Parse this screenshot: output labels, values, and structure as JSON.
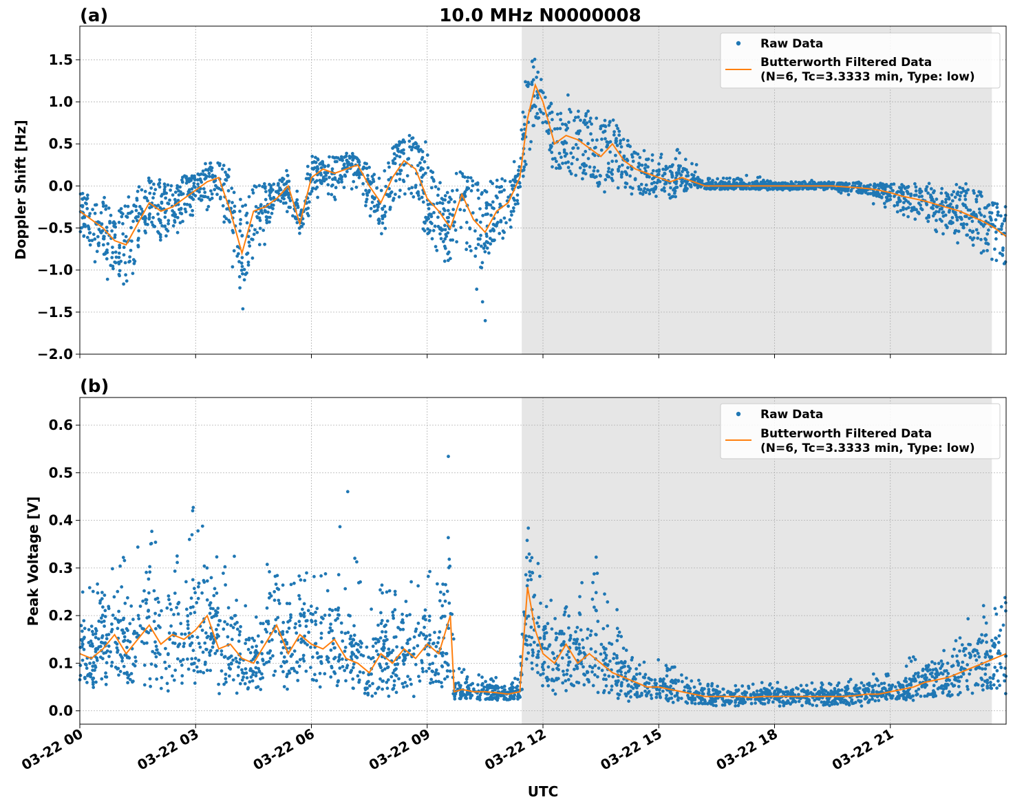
{
  "figure": {
    "title": "10.0 MHz N0000008",
    "xlabel": "UTC",
    "x_tick_labels": [
      "03-22 00",
      "03-22 03",
      "03-22 06",
      "03-22 09",
      "03-22 12",
      "03-22 15",
      "03-22 18",
      "03-22 21"
    ],
    "colors": {
      "raw": "#1f77b4",
      "filtered": "#ff7f0e",
      "shade": "#e6e6e6",
      "grid": "#b0b0b0"
    }
  },
  "chart_data": [
    {
      "type": "scatter",
      "panel_label": "(a)",
      "title": "10.0 MHz N0000008",
      "ylabel": "Doppler Shift [Hz]",
      "xlabel": "",
      "x_unit": "hours since 03-22 00 UTC",
      "xlim": [
        0,
        24
      ],
      "ylim": [
        -2.0,
        1.9
      ],
      "y_ticks": [
        -2.0,
        -1.5,
        -1.0,
        -0.5,
        0.0,
        0.5,
        1.0,
        1.5
      ],
      "y_tick_labels": [
        "−2.0",
        "−1.5",
        "−1.0",
        "−0.5",
        "0.0",
        "0.5",
        "1.0",
        "1.5"
      ],
      "shaded_span": [
        11.45,
        23.63
      ],
      "grid": true,
      "legend": {
        "position": "top-right",
        "entries": [
          "Raw Data",
          "Butterworth Filtered Data\n(N=6, Tc=3.3333 min, Type: low)"
        ]
      },
      "series": [
        {
          "name": "Butterworth Filtered Data (N=6, Tc=3.3333 min, Type: low)",
          "x": [
            0.0,
            0.3,
            0.6,
            0.9,
            1.2,
            1.5,
            1.8,
            2.1,
            2.4,
            2.7,
            3.0,
            3.3,
            3.6,
            3.9,
            4.2,
            4.5,
            4.8,
            5.1,
            5.4,
            5.7,
            6.0,
            6.3,
            6.6,
            6.9,
            7.2,
            7.5,
            7.8,
            8.1,
            8.4,
            8.7,
            9.0,
            9.3,
            9.6,
            9.9,
            10.2,
            10.5,
            10.8,
            11.1,
            11.4,
            11.6,
            11.8,
            12.0,
            12.3,
            12.6,
            12.9,
            13.2,
            13.5,
            13.8,
            14.1,
            14.4,
            14.7,
            15.0,
            15.3,
            15.6,
            15.9,
            16.2,
            16.5,
            16.8,
            17.1,
            17.4,
            17.7,
            18.0,
            18.3,
            18.6,
            18.9,
            19.2,
            19.5,
            19.8,
            20.1,
            20.4,
            20.7,
            21.0,
            21.3,
            21.6,
            21.9,
            22.2,
            22.5,
            22.8,
            23.1,
            23.4,
            23.7,
            24.0
          ],
          "y": [
            -0.3,
            -0.4,
            -0.5,
            -0.65,
            -0.7,
            -0.45,
            -0.2,
            -0.3,
            -0.25,
            -0.15,
            -0.05,
            0.05,
            0.1,
            -0.3,
            -0.8,
            -0.3,
            -0.25,
            -0.15,
            0.0,
            -0.45,
            0.1,
            0.2,
            0.15,
            0.2,
            0.25,
            0.0,
            -0.2,
            0.1,
            0.3,
            0.2,
            -0.15,
            -0.3,
            -0.5,
            -0.1,
            -0.4,
            -0.55,
            -0.3,
            -0.2,
            0.1,
            0.8,
            1.2,
            1.0,
            0.5,
            0.6,
            0.55,
            0.45,
            0.35,
            0.5,
            0.3,
            0.2,
            0.15,
            0.1,
            0.05,
            0.1,
            0.05,
            0.0,
            0.0,
            0.0,
            0.0,
            0.0,
            0.0,
            0.0,
            0.0,
            0.0,
            0.0,
            0.0,
            0.0,
            -0.01,
            -0.02,
            -0.03,
            -0.05,
            -0.08,
            -0.12,
            -0.15,
            -0.18,
            -0.22,
            -0.26,
            -0.3,
            -0.36,
            -0.42,
            -0.5,
            -0.6
          ]
        },
        {
          "name": "Raw Data",
          "x": [
            0.0,
            0.3,
            0.6,
            0.9,
            1.2,
            1.5,
            1.8,
            2.1,
            2.4,
            2.7,
            3.0,
            3.3,
            3.6,
            3.9,
            4.2,
            4.5,
            4.8,
            5.1,
            5.4,
            5.7,
            6.0,
            6.3,
            6.6,
            6.9,
            7.2,
            7.5,
            7.8,
            8.1,
            8.4,
            8.7,
            9.0,
            9.3,
            9.6,
            9.9,
            10.2,
            10.5,
            10.8,
            11.1,
            11.4,
            11.6,
            11.8,
            12.0,
            12.3,
            12.6,
            12.9,
            13.2,
            13.5,
            13.8,
            14.1,
            14.4,
            14.7,
            15.0,
            15.3,
            15.6,
            15.9,
            16.2,
            16.5,
            16.8,
            17.1,
            17.4,
            17.7,
            18.0,
            18.3,
            18.6,
            18.9,
            19.2,
            19.5,
            19.8,
            20.1,
            20.4,
            20.7,
            21.0,
            21.3,
            21.6,
            21.9,
            22.2,
            22.5,
            22.8,
            23.1,
            23.4,
            23.7,
            24.0
          ],
          "y_min": [
            -0.6,
            -0.8,
            -1.2,
            -1.1,
            -1.3,
            -0.9,
            -0.6,
            -0.7,
            -0.6,
            -0.5,
            -0.4,
            -0.3,
            -0.5,
            -1.0,
            -1.8,
            -0.8,
            -0.7,
            -0.5,
            -0.3,
            -0.6,
            -0.3,
            -0.1,
            -0.2,
            -0.1,
            -0.1,
            -0.4,
            -0.7,
            -0.4,
            -0.1,
            -0.3,
            -0.7,
            -0.8,
            -1.0,
            -0.6,
            -1.4,
            -1.7,
            -0.7,
            -0.6,
            -0.2,
            0.2,
            0.6,
            0.5,
            0.1,
            0.1,
            0.1,
            0.0,
            -0.1,
            -0.1,
            -0.1,
            -0.1,
            -0.1,
            -0.15,
            -0.2,
            -0.1,
            -0.05,
            -0.05,
            -0.05,
            -0.05,
            -0.05,
            -0.05,
            -0.05,
            -0.05,
            -0.05,
            -0.05,
            -0.05,
            -0.05,
            -0.05,
            -0.1,
            -0.15,
            -0.2,
            -0.25,
            -0.3,
            -0.35,
            -0.4,
            -0.5,
            -0.55,
            -0.6,
            -0.7,
            -0.8,
            -0.9,
            -1.0,
            -1.05
          ],
          "y_max": [
            0.0,
            0.1,
            -0.1,
            -0.2,
            0.0,
            0.2,
            0.3,
            0.1,
            0.1,
            0.2,
            0.2,
            0.3,
            0.4,
            0.2,
            -0.1,
            0.1,
            0.1,
            0.1,
            0.2,
            0.0,
            0.35,
            0.4,
            0.4,
            0.4,
            0.4,
            0.3,
            0.2,
            0.5,
            1.0,
            0.8,
            0.5,
            0.1,
            0.1,
            0.3,
            0.2,
            0.1,
            0.1,
            0.1,
            0.6,
            1.5,
            1.7,
            1.4,
            1.2,
            1.1,
            1.0,
            0.9,
            0.8,
            0.9,
            0.7,
            0.5,
            0.4,
            0.4,
            0.4,
            0.5,
            0.35,
            0.1,
            0.1,
            0.1,
            0.1,
            0.15,
            0.1,
            0.05,
            0.05,
            0.05,
            0.1,
            0.05,
            0.05,
            0.05,
            0.05,
            0.05,
            0.05,
            0.05,
            0.05,
            0.05,
            0.05,
            0.05,
            0.05,
            0.05,
            0.05,
            0.05,
            -0.1,
            -0.2
          ]
        }
      ]
    },
    {
      "type": "scatter",
      "panel_label": "(b)",
      "title": "",
      "ylabel": "Peak Voltage [V]",
      "xlabel": "UTC",
      "x_unit": "hours since 03-22 00 UTC",
      "xlim": [
        0,
        24
      ],
      "ylim": [
        -0.028,
        0.658
      ],
      "y_ticks": [
        0.0,
        0.1,
        0.2,
        0.3,
        0.4,
        0.5,
        0.6
      ],
      "y_tick_labels": [
        "0.0",
        "0.1",
        "0.2",
        "0.3",
        "0.4",
        "0.5",
        "0.6"
      ],
      "x_ticks": [
        0,
        3,
        6,
        9,
        12,
        15,
        18,
        21
      ],
      "shaded_span": [
        11.45,
        23.63
      ],
      "grid": true,
      "legend": {
        "position": "top-right",
        "entries": [
          "Raw Data",
          "Butterworth Filtered Data\n(N=6, Tc=3.3333 min, Type: low)"
        ]
      },
      "series": [
        {
          "name": "Butterworth Filtered Data (N=6, Tc=3.3333 min, Type: low)",
          "x": [
            0.0,
            0.3,
            0.6,
            0.9,
            1.2,
            1.5,
            1.8,
            2.1,
            2.4,
            2.7,
            3.0,
            3.3,
            3.6,
            3.9,
            4.2,
            4.5,
            4.8,
            5.1,
            5.4,
            5.7,
            6.0,
            6.3,
            6.6,
            6.9,
            7.2,
            7.5,
            7.8,
            8.1,
            8.4,
            8.7,
            9.0,
            9.3,
            9.6,
            9.7,
            9.9,
            10.2,
            10.5,
            10.8,
            11.1,
            11.4,
            11.6,
            11.8,
            12.0,
            12.3,
            12.6,
            12.9,
            13.2,
            13.5,
            13.8,
            14.1,
            14.4,
            14.7,
            15.0,
            15.3,
            15.6,
            15.9,
            16.2,
            16.5,
            16.8,
            17.1,
            17.4,
            17.7,
            18.0,
            18.3,
            18.6,
            18.9,
            19.2,
            19.5,
            19.8,
            20.1,
            20.4,
            20.7,
            21.0,
            21.3,
            21.6,
            21.9,
            22.2,
            22.5,
            22.8,
            23.1,
            23.4,
            23.7,
            24.0
          ],
          "y": [
            0.12,
            0.11,
            0.13,
            0.16,
            0.12,
            0.15,
            0.18,
            0.14,
            0.16,
            0.15,
            0.17,
            0.2,
            0.13,
            0.14,
            0.11,
            0.1,
            0.14,
            0.18,
            0.12,
            0.16,
            0.14,
            0.13,
            0.15,
            0.11,
            0.1,
            0.08,
            0.12,
            0.1,
            0.13,
            0.11,
            0.14,
            0.12,
            0.2,
            0.04,
            0.045,
            0.04,
            0.04,
            0.038,
            0.035,
            0.04,
            0.26,
            0.17,
            0.12,
            0.1,
            0.14,
            0.1,
            0.12,
            0.1,
            0.08,
            0.07,
            0.06,
            0.05,
            0.05,
            0.045,
            0.04,
            0.035,
            0.03,
            0.03,
            0.03,
            0.03,
            0.028,
            0.03,
            0.03,
            0.03,
            0.03,
            0.03,
            0.03,
            0.03,
            0.03,
            0.032,
            0.035,
            0.035,
            0.04,
            0.045,
            0.05,
            0.06,
            0.065,
            0.07,
            0.08,
            0.09,
            0.1,
            0.11,
            0.12
          ]
        },
        {
          "name": "Raw Data",
          "x": [
            0.0,
            0.3,
            0.6,
            0.9,
            1.2,
            1.5,
            1.8,
            2.1,
            2.4,
            2.7,
            3.0,
            3.3,
            3.6,
            3.9,
            4.2,
            4.5,
            4.8,
            5.1,
            5.4,
            5.7,
            6.0,
            6.3,
            6.6,
            6.9,
            7.2,
            7.5,
            7.8,
            8.1,
            8.4,
            8.7,
            9.0,
            9.3,
            9.6,
            9.7,
            9.9,
            10.2,
            10.5,
            10.8,
            11.1,
            11.4,
            11.6,
            11.8,
            12.0,
            12.3,
            12.6,
            12.9,
            13.2,
            13.5,
            13.8,
            14.1,
            14.4,
            14.7,
            15.0,
            15.3,
            15.6,
            15.9,
            16.2,
            16.5,
            16.8,
            17.1,
            17.4,
            17.7,
            18.0,
            18.3,
            18.6,
            18.9,
            19.2,
            19.5,
            19.8,
            20.1,
            20.4,
            20.7,
            21.0,
            21.3,
            21.6,
            21.9,
            22.2,
            22.5,
            22.8,
            23.1,
            23.4,
            23.7,
            24.0
          ],
          "y_min": [
            0.04,
            0.04,
            0.04,
            0.05,
            0.04,
            0.04,
            0.05,
            0.04,
            0.04,
            0.05,
            0.05,
            0.05,
            0.03,
            0.04,
            0.03,
            0.03,
            0.04,
            0.04,
            0.04,
            0.04,
            0.04,
            0.04,
            0.03,
            0.03,
            0.03,
            0.02,
            0.03,
            0.03,
            0.03,
            0.03,
            0.04,
            0.03,
            0.05,
            0.02,
            0.02,
            0.02,
            0.02,
            0.02,
            0.02,
            0.02,
            0.08,
            0.06,
            0.04,
            0.03,
            0.04,
            0.03,
            0.04,
            0.03,
            0.02,
            0.02,
            0.02,
            0.02,
            0.02,
            0.02,
            0.01,
            0.01,
            0.01,
            0.01,
            0.01,
            0.01,
            0.01,
            0.01,
            0.01,
            0.01,
            0.01,
            0.01,
            0.01,
            0.01,
            0.01,
            0.01,
            0.01,
            0.02,
            0.02,
            0.02,
            0.02,
            0.02,
            0.02,
            0.02,
            0.02,
            0.02,
            0.02,
            0.03,
            0.03
          ],
          "y_max": [
            0.25,
            0.28,
            0.3,
            0.42,
            0.32,
            0.35,
            0.4,
            0.32,
            0.35,
            0.35,
            0.45,
            0.42,
            0.33,
            0.4,
            0.25,
            0.22,
            0.3,
            0.36,
            0.26,
            0.3,
            0.33,
            0.3,
            0.3,
            0.56,
            0.3,
            0.22,
            0.28,
            0.25,
            0.32,
            0.28,
            0.3,
            0.3,
            0.62,
            0.1,
            0.09,
            0.09,
            0.08,
            0.07,
            0.07,
            0.08,
            0.5,
            0.38,
            0.3,
            0.22,
            0.26,
            0.25,
            0.4,
            0.3,
            0.26,
            0.16,
            0.13,
            0.12,
            0.12,
            0.1,
            0.08,
            0.07,
            0.07,
            0.06,
            0.06,
            0.06,
            0.06,
            0.07,
            0.06,
            0.06,
            0.06,
            0.06,
            0.06,
            0.06,
            0.07,
            0.07,
            0.08,
            0.08,
            0.09,
            0.1,
            0.12,
            0.13,
            0.14,
            0.16,
            0.18,
            0.2,
            0.22,
            0.24,
            0.24
          ]
        }
      ]
    }
  ]
}
